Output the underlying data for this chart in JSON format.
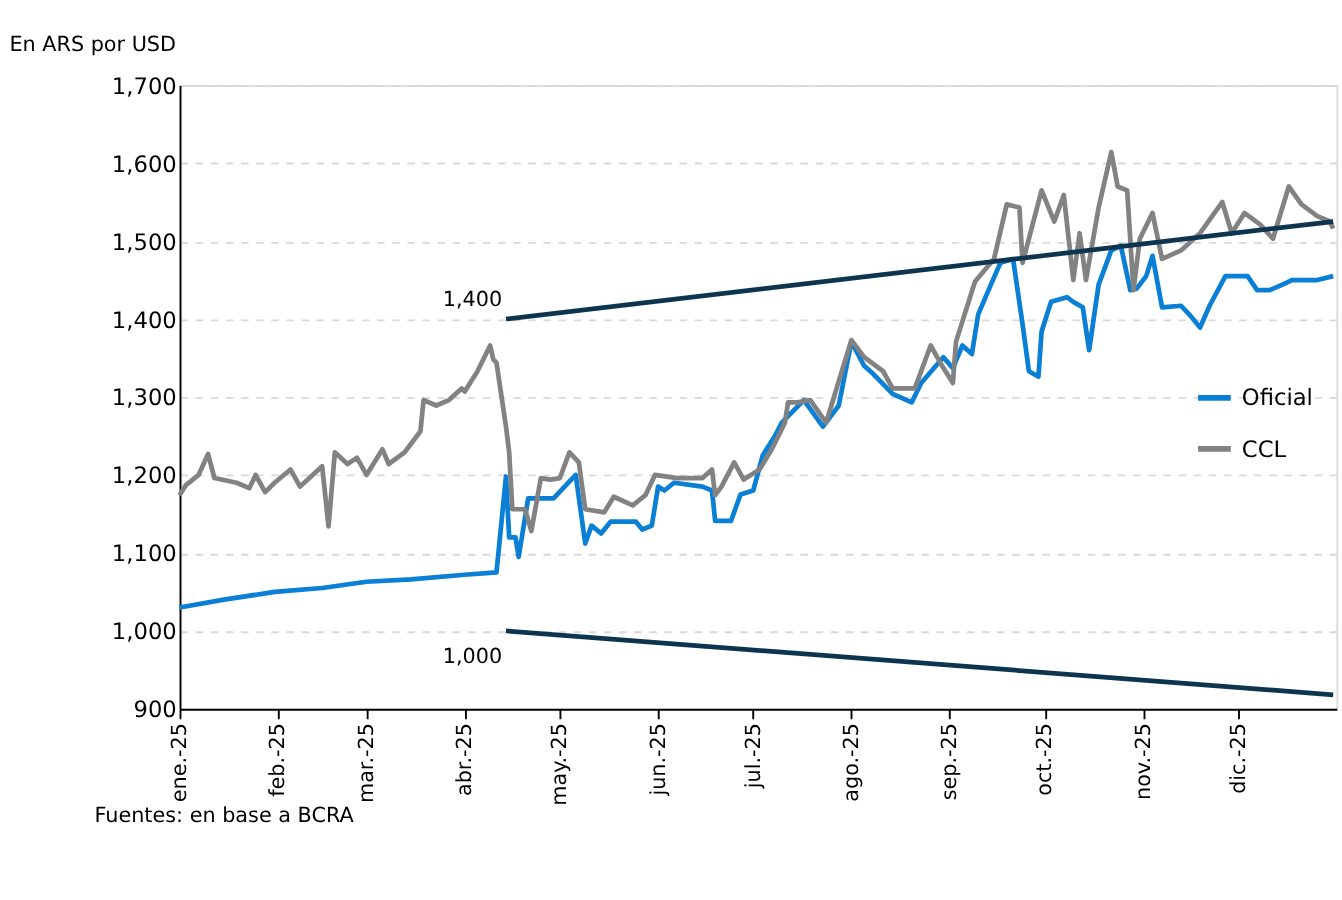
{
  "chart_data": {
    "type": "line",
    "title": "En ARS por USD",
    "xlim": [
      "2025-01-01",
      "2026-01-01"
    ],
    "xticks": [
      {
        "value": "2025-01-01",
        "label": "ene.-25"
      },
      {
        "value": "2025-02-01",
        "label": "feb.-25"
      },
      {
        "value": "2025-03-01",
        "label": "mar.-25"
      },
      {
        "value": "2025-04-01",
        "label": "abr.-25"
      },
      {
        "value": "2025-05-01",
        "label": "may.-25"
      },
      {
        "value": "2025-06-01",
        "label": "jun.-25"
      },
      {
        "value": "2025-07-01",
        "label": "jul.-25"
      },
      {
        "value": "2025-08-01",
        "label": "ago.-25"
      },
      {
        "value": "2025-09-01",
        "label": "sep.-25"
      },
      {
        "value": "2025-10-01",
        "label": "oct.-25"
      },
      {
        "value": "2025-11-01",
        "label": "nov.-25"
      },
      {
        "value": "2025-12-01",
        "label": "dic.-25"
      }
    ],
    "ylim": [
      900,
      1700
    ],
    "yticks": [
      {
        "value": 900,
        "label": "900"
      },
      {
        "value": 1000,
        "label": "1,000"
      },
      {
        "value": 1100,
        "label": "1,100"
      },
      {
        "value": 1200,
        "label": "1,200"
      },
      {
        "value": 1300,
        "label": "1,300"
      },
      {
        "value": 1400,
        "label": "1,400"
      },
      {
        "value": 1500,
        "label": "1,500"
      },
      {
        "value": 1600,
        "label": "1,600"
      },
      {
        "value": 1700,
        "label": "1,700"
      }
    ],
    "grid": "y",
    "legend": "right",
    "marker": "none",
    "line_style": "solid",
    "series": [
      {
        "name": "Oficial",
        "color": "#0a7fd6",
        "x": [
          "2025-01-01",
          "2025-01-15",
          "2025-01-31",
          "2025-02-15",
          "2025-03-01",
          "2025-03-15",
          "2025-04-01",
          "2025-04-11",
          "2025-04-14",
          "2025-04-15",
          "2025-04-17",
          "2025-04-18",
          "2025-04-21",
          "2025-04-29",
          "2025-05-06",
          "2025-05-09",
          "2025-05-11",
          "2025-05-14",
          "2025-05-17",
          "2025-05-25",
          "2025-05-27",
          "2025-05-30",
          "2025-06-01",
          "2025-06-03",
          "2025-06-06",
          "2025-06-15",
          "2025-06-18",
          "2025-06-19",
          "2025-06-24",
          "2025-06-27",
          "2025-07-01",
          "2025-07-04",
          "2025-07-08",
          "2025-07-10",
          "2025-07-17",
          "2025-07-23",
          "2025-07-28",
          "2025-08-01",
          "2025-08-05",
          "2025-08-08",
          "2025-08-14",
          "2025-08-20",
          "2025-08-23",
          "2025-08-30",
          "2025-09-02",
          "2025-09-05",
          "2025-09-08",
          "2025-09-10",
          "2025-09-14",
          "2025-09-17",
          "2025-09-21",
          "2025-09-24",
          "2025-09-26",
          "2025-09-29",
          "2025-09-30",
          "2025-10-03",
          "2025-10-08",
          "2025-10-10",
          "2025-10-13",
          "2025-10-15",
          "2025-10-18",
          "2025-10-22",
          "2025-10-25",
          "2025-10-28",
          "2025-10-30",
          "2025-11-02",
          "2025-11-04",
          "2025-11-07",
          "2025-11-13",
          "2025-11-16",
          "2025-11-19",
          "2025-11-22",
          "2025-11-27",
          "2025-12-04",
          "2025-12-07",
          "2025-12-11",
          "2025-12-15",
          "2025-12-18",
          "2025-12-26",
          "2025-12-31"
        ],
        "values": [
          1030,
          1040,
          1050,
          1055,
          1063,
          1066,
          1072,
          1075,
          1198,
          1120,
          1120,
          1095,
          1170,
          1170,
          1200,
          1112,
          1135,
          1125,
          1140,
          1140,
          1130,
          1135,
          1185,
          1180,
          1190,
          1185,
          1180,
          1141,
          1141,
          1175,
          1180,
          1225,
          1251,
          1267,
          1296,
          1262,
          1289,
          1371,
          1340,
          1329,
          1304,
          1293,
          1318,
          1351,
          1337,
          1366,
          1355,
          1406,
          1444,
          1472,
          1477,
          1393,
          1333,
          1326,
          1384,
          1422,
          1428,
          1422,
          1415,
          1360,
          1444,
          1488,
          1494,
          1437,
          1439,
          1455,
          1481,
          1415,
          1417,
          1404,
          1389,
          1417,
          1455,
          1455,
          1437,
          1437,
          1444,
          1450,
          1450,
          1455
        ]
      },
      {
        "name": "CCL",
        "color": "#828282",
        "x": [
          "2025-01-01",
          "2025-01-03",
          "2025-01-07",
          "2025-01-10",
          "2025-01-12",
          "2025-01-19",
          "2025-01-23",
          "2025-01-25",
          "2025-01-28",
          "2025-01-31",
          "2025-02-05",
          "2025-02-08",
          "2025-02-12",
          "2025-02-15",
          "2025-02-17",
          "2025-02-19",
          "2025-02-23",
          "2025-02-26",
          "2025-03-01",
          "2025-03-06",
          "2025-03-08",
          "2025-03-13",
          "2025-03-18",
          "2025-03-19",
          "2025-03-23",
          "2025-03-27",
          "2025-03-31",
          "2025-04-01",
          "2025-04-05",
          "2025-04-09",
          "2025-04-10",
          "2025-04-11",
          "2025-04-14",
          "2025-04-15",
          "2025-04-16",
          "2025-04-20",
          "2025-04-22",
          "2025-04-25",
          "2025-04-28",
          "2025-05-01",
          "2025-05-04",
          "2025-05-07",
          "2025-05-09",
          "2025-05-15",
          "2025-05-18",
          "2025-05-24",
          "2025-05-28",
          "2025-05-31",
          "2025-06-07",
          "2025-06-15",
          "2025-06-18",
          "2025-06-19",
          "2025-06-21",
          "2025-06-25",
          "2025-06-28",
          "2025-07-03",
          "2025-07-07",
          "2025-07-11",
          "2025-07-12",
          "2025-07-15",
          "2025-07-19",
          "2025-07-24",
          "2025-08-01",
          "2025-08-05",
          "2025-08-11",
          "2025-08-14",
          "2025-08-21",
          "2025-08-26",
          "2025-08-29",
          "2025-09-02",
          "2025-09-03",
          "2025-09-09",
          "2025-09-15",
          "2025-09-19",
          "2025-09-23",
          "2025-09-24",
          "2025-09-30",
          "2025-10-04",
          "2025-10-07",
          "2025-10-10",
          "2025-10-12",
          "2025-10-14",
          "2025-10-18",
          "2025-10-22",
          "2025-10-24",
          "2025-10-27",
          "2025-10-29",
          "2025-10-31",
          "2025-11-04",
          "2025-11-07",
          "2025-11-13",
          "2025-11-19",
          "2025-11-26",
          "2025-11-29",
          "2025-12-03",
          "2025-12-08",
          "2025-12-12",
          "2025-12-17",
          "2025-12-21",
          "2025-12-26",
          "2025-12-30",
          "2025-12-31"
        ],
        "values": [
          1174,
          1187,
          1200,
          1227,
          1196,
          1190,
          1183,
          1200,
          1178,
          1190,
          1207,
          1185,
          1200,
          1211,
          1134,
          1229,
          1214,
          1222,
          1200,
          1233,
          1214,
          1229,
          1256,
          1296,
          1289,
          1296,
          1311,
          1307,
          1333,
          1366,
          1348,
          1344,
          1262,
          1229,
          1156,
          1156,
          1128,
          1196,
          1194,
          1196,
          1229,
          1216,
          1156,
          1152,
          1172,
          1161,
          1174,
          1200,
          1196,
          1196,
          1207,
          1174,
          1185,
          1216,
          1194,
          1207,
          1234,
          1267,
          1293,
          1293,
          1296,
          1267,
          1373,
          1351,
          1333,
          1311,
          1311,
          1366,
          1344,
          1318,
          1371,
          1448,
          1477,
          1547,
          1543,
          1472,
          1565,
          1525,
          1559,
          1450,
          1510,
          1450,
          1543,
          1614,
          1570,
          1565,
          1437,
          1503,
          1536,
          1477,
          1488,
          1510,
          1550,
          1510,
          1536,
          1521,
          1503,
          1570,
          1547,
          1532,
          1525,
          1516
        ]
      },
      {
        "color": "#0d3550",
        "x": [
          "2025-04-14",
          "2025-12-31"
        ],
        "values": [
          1400,
          1525
        ]
      },
      {
        "color": "#0d3550",
        "x": [
          "2025-04-14",
          "2025-12-31"
        ],
        "values": [
          1000,
          918
        ]
      }
    ],
    "annotations": [
      {
        "text": "1,400",
        "x": "2025-04-14",
        "y": 1400
      },
      {
        "text": "1,000",
        "x": "2025-04-14",
        "y": 1000
      },
      "Fuentes: en base a BCRA"
    ]
  }
}
